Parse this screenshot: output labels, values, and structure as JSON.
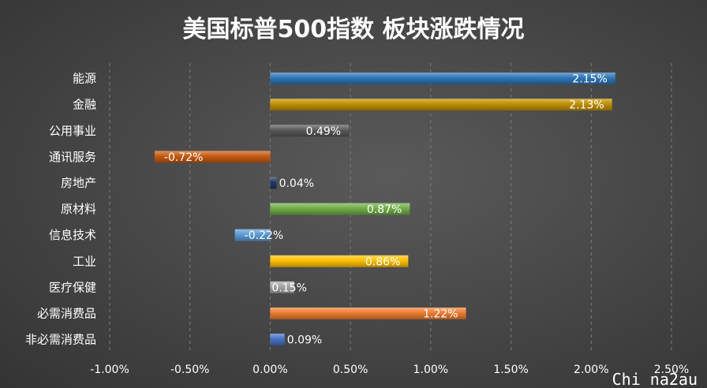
{
  "chart_data": {
    "type": "bar",
    "orientation": "horizontal",
    "title": "美国标普500指数 板块涨跌情况",
    "categories": [
      "能源",
      "金融",
      "公用事业",
      "通讯服务",
      "房地产",
      "原材料",
      "信息技术",
      "工业",
      "医疗保健",
      "必需消费品",
      "非必需消费品"
    ],
    "values": [
      2.15,
      2.13,
      0.49,
      -0.72,
      0.04,
      0.87,
      -0.22,
      0.86,
      0.15,
      1.22,
      0.09
    ],
    "data_labels": [
      "2.15%",
      "2.13%",
      "0.49%",
      "-0.72%",
      "0.04%",
      "0.87%",
      "-0.22%",
      "0.86%",
      "0.15%",
      "1.22%",
      "0.09%"
    ],
    "colors": [
      "#2e75b6",
      "#bf9000",
      "#595959",
      "#c55a11",
      "#203864",
      "#70ad47",
      "#5b9bd5",
      "#ffc000",
      "#a5a5a5",
      "#ed7d31",
      "#4472c4"
    ],
    "xlim": [
      -1.0,
      2.5
    ],
    "xticks": [
      -1.0,
      -0.5,
      0.0,
      0.5,
      1.0,
      1.5,
      2.0,
      2.5
    ],
    "xtick_labels": [
      "-1.00%",
      "-0.50%",
      "0.00%",
      "0.50%",
      "1.00%",
      "1.50%",
      "2.00%",
      "2.50%"
    ],
    "grid": true,
    "legend": "none"
  },
  "watermark": "Chi na2au"
}
